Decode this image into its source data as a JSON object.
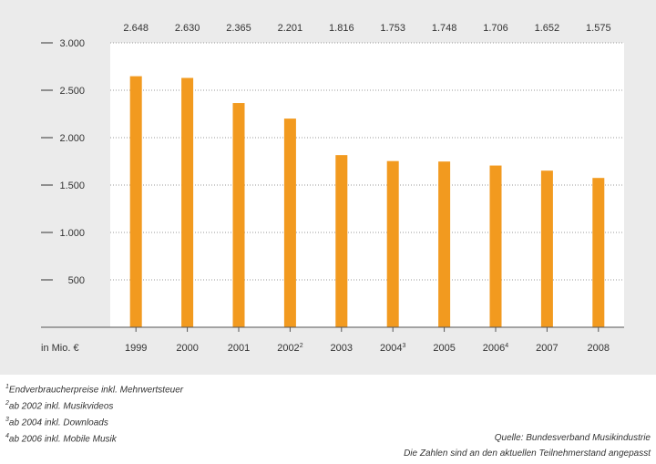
{
  "chart_data": {
    "type": "bar",
    "categories": [
      "1999",
      "2000",
      "2001",
      "2002",
      "2003",
      "2004",
      "2005",
      "2006",
      "2007",
      "2008"
    ],
    "category_superscripts": [
      "",
      "",
      "",
      "2",
      "",
      "3",
      "",
      "4",
      "",
      ""
    ],
    "values": [
      2648,
      2630,
      2365,
      2201,
      1816,
      1753,
      1748,
      1706,
      1652,
      1575
    ],
    "value_labels": [
      "2.648",
      "2.630",
      "2.365",
      "2.201",
      "1.816",
      "1.753",
      "1.748",
      "1.706",
      "1.652",
      "1.575"
    ],
    "y_ticks": [
      500,
      1000,
      1500,
      2000,
      2500,
      3000
    ],
    "y_tick_labels": [
      "500",
      "1.000",
      "1.500",
      "2.000",
      "2.500",
      "3.000"
    ],
    "ylim": [
      0,
      3000
    ],
    "unit_label": "in Mio. €",
    "grid": "horizontal-dotted",
    "bar_color": "#f29a1f",
    "plot_background": "#ffffff",
    "panel_background": "#ebebeb"
  },
  "footnotes": [
    {
      "mark": "1",
      "text": "Endverbraucherpreise inkl. Mehrwertsteuer"
    },
    {
      "mark": "2",
      "text": "ab 2002 inkl. Musikvideos"
    },
    {
      "mark": "3",
      "text": "ab 2004 inkl. Downloads"
    },
    {
      "mark": "4",
      "text": "ab 2006 inkl. Mobile Musik"
    }
  ],
  "source": {
    "line1": "Quelle: Bundesverband Musikindustrie",
    "line2": "Die Zahlen sind an den aktuellen Teilnehmerstand angepasst"
  }
}
